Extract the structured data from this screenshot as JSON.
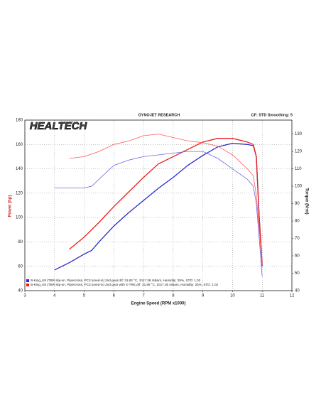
{
  "chart_data": {
    "type": "line",
    "logo": {
      "text": "HEALTECH",
      "sub": "ELECTRONICS"
    },
    "title": "DYNOJET RESEARCH",
    "subtitle": "CF: STD  Smoothing: 5",
    "x_label": "Engine Speed (RPM x1000)",
    "y_label": "Power (hp)",
    "y2_label": "Torque (N-m)",
    "xlim": [
      3,
      12
    ],
    "xticks": [
      3,
      4,
      5,
      6,
      7,
      8,
      9,
      10,
      11,
      12
    ],
    "ylim": [
      40,
      180
    ],
    "yticks": [
      40,
      60,
      80,
      100,
      120,
      140,
      160,
      180
    ],
    "y2lim": [
      40,
      138
    ],
    "y2ticks": [
      40,
      50,
      60,
      70,
      80,
      90,
      100,
      110,
      120,
      130
    ],
    "grid": true,
    "series": [
      {
        "color": "#2a2ad0",
        "width": 1.3,
        "x": [
          4.0,
          4.5,
          5.0,
          5.25,
          5.5,
          6.0,
          6.5,
          7.0,
          7.5,
          8.0,
          8.5,
          9.0,
          9.5,
          10.0,
          10.5,
          10.7,
          10.8,
          10.9,
          11.0
        ],
        "values": [
          57,
          63,
          70,
          73,
          80,
          93,
          104,
          114,
          124,
          133,
          143,
          151,
          158,
          161,
          160,
          159,
          150,
          100,
          60
        ]
      },
      {
        "color": "#ee1c1c",
        "width": 1.3,
        "x": [
          4.5,
          5.0,
          5.5,
          6.0,
          6.5,
          7.0,
          7.5,
          8.0,
          8.5,
          9.0,
          9.5,
          10.0,
          10.5,
          10.7,
          10.8,
          10.9,
          11.0
        ],
        "values": [
          74,
          84,
          96,
          109,
          121,
          133,
          144,
          150,
          156,
          162,
          165,
          165,
          162,
          160,
          150,
          100,
          62
        ]
      },
      {
        "color": "#6a6ae0",
        "width": 0.8,
        "axis": "y2",
        "x": [
          4.0,
          4.5,
          5.0,
          5.25,
          5.5,
          6.0,
          6.5,
          7.0,
          7.5,
          8.0,
          8.5,
          9.0,
          9.5,
          10.0,
          10.5,
          10.7,
          10.8,
          10.9,
          11.0
        ],
        "values": [
          99,
          99,
          99,
          100,
          104,
          112,
          115,
          117,
          118,
          119,
          120,
          120,
          116,
          110,
          104,
          100,
          90,
          70,
          48
        ]
      },
      {
        "color": "#ff5a5a",
        "width": 0.8,
        "axis": "y2",
        "x": [
          4.5,
          5.0,
          5.5,
          6.0,
          6.5,
          7.0,
          7.5,
          8.0,
          8.5,
          9.0,
          9.5,
          10.0,
          10.5,
          10.7,
          10.8,
          10.9,
          11.0
        ],
        "values": [
          116,
          117,
          120,
          124,
          126,
          129,
          130,
          128,
          126,
          125,
          123,
          118,
          110,
          106,
          95,
          75,
          55
        ]
      }
    ],
    "legend": [
      {
        "label": "B-King_K8 (TBR slip-on, Pipercross, PC3 tuned-in) 2nd gear.drf: 31.83 °C, 1017.36 mBars, Humidity: 25%, STD: 1.02",
        "color": "#2a2ad0"
      },
      {
        "label": "B-King_K8 (TBR slip-on, Pipercross, PC3 tuned-in) 2nd gear with X-TRE.drf: 31.98 °C, 1017.36 mBars, Humidity: 25%, STD: 1.02",
        "color": "#ee1c1c"
      }
    ]
  }
}
